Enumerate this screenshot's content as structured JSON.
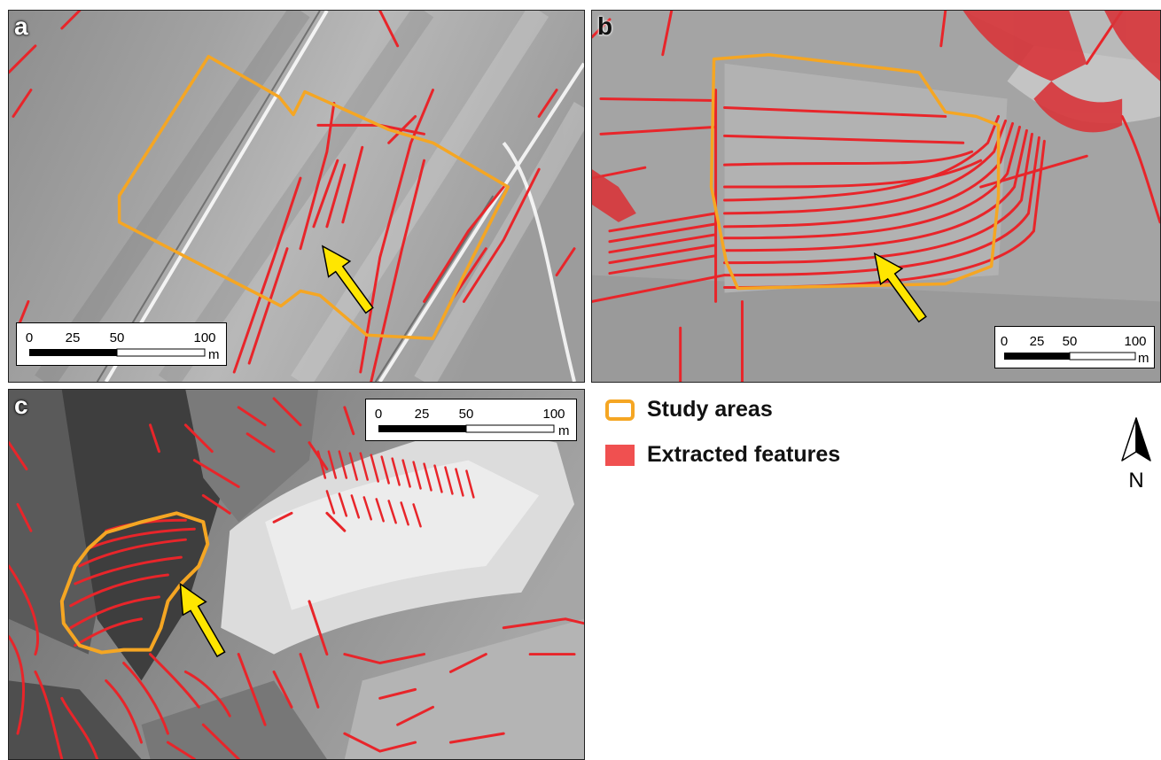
{
  "panels": [
    {
      "label": "a",
      "scalebar": {
        "ticks": [
          "0",
          "25",
          "50",
          "100"
        ],
        "unit": "m"
      }
    },
    {
      "label": "b",
      "scalebar": {
        "ticks": [
          "0",
          "25",
          "50",
          "100"
        ],
        "unit": "m"
      }
    },
    {
      "label": "c",
      "scalebar": {
        "ticks": [
          "0",
          "25",
          "50",
          "100"
        ],
        "unit": "m"
      }
    }
  ],
  "legend": {
    "items": [
      {
        "label": "Study areas",
        "color": "#f5a623"
      },
      {
        "label": "Extracted features",
        "color": "#f05050"
      }
    ]
  },
  "north_arrow": {
    "label": "N"
  },
  "colors": {
    "study_area": "#f5a623",
    "features": "#e8252a",
    "arrow": "#ffe600"
  }
}
